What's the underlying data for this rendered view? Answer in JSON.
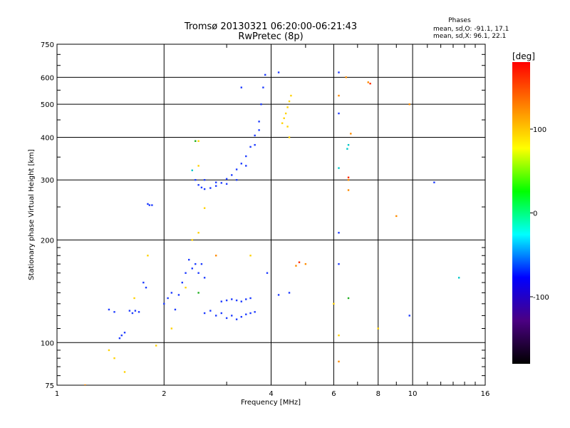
{
  "chart_data": {
    "type": "scatter",
    "title": "Tromsø 20130321 06:20:00-06:21:43",
    "subtitle": "RwPretec (8p)",
    "xlabel": "Frequency [MHz]",
    "ylabel": "Stationary phase Virtual Height [km]",
    "x_scale": "log2",
    "y_scale": "log",
    "xlim": [
      1,
      16
    ],
    "ylim": [
      75,
      750
    ],
    "x_ticks": [
      "1",
      "2",
      "4",
      "6",
      "8",
      "10",
      "16"
    ],
    "y_ticks": [
      "75",
      "100",
      "200",
      "300",
      "400",
      "500",
      "600",
      "750"
    ],
    "grid": true,
    "stats_title": "Phases",
    "stats": [
      "mean, sd,O: -91.1, 17.1",
      "mean, sd,X:  96.1, 22.1"
    ],
    "colorbar": {
      "title": "[deg]",
      "range": [
        -180,
        180
      ],
      "tick_labels": [
        "100",
        "0",
        "-100"
      ],
      "colors": [
        "#000000",
        "#4b0082",
        "#0000ff",
        "#00ffff",
        "#00ff00",
        "#ffff00",
        "#ff8000",
        "#ff0000"
      ]
    },
    "series": [
      {
        "color": "#1e3cff",
        "points": [
          [
            1.4,
            125
          ],
          [
            1.45,
            123
          ],
          [
            1.5,
            103
          ],
          [
            1.52,
            105
          ],
          [
            1.55,
            107
          ],
          [
            1.6,
            124
          ],
          [
            1.63,
            122
          ],
          [
            1.66,
            124
          ],
          [
            1.7,
            123
          ],
          [
            1.75,
            150
          ],
          [
            1.78,
            145
          ],
          [
            1.8,
            255
          ],
          [
            1.82,
            253
          ],
          [
            1.85,
            253
          ],
          [
            2.0,
            130
          ],
          [
            2.05,
            135
          ],
          [
            2.1,
            140
          ],
          [
            2.15,
            125
          ],
          [
            2.2,
            138
          ],
          [
            2.25,
            150
          ],
          [
            2.3,
            160
          ],
          [
            2.35,
            175
          ],
          [
            2.4,
            165
          ],
          [
            2.45,
            170
          ],
          [
            2.5,
            160
          ],
          [
            2.55,
            170
          ],
          [
            2.6,
            155
          ],
          [
            2.6,
            122
          ],
          [
            2.7,
            124
          ],
          [
            2.8,
            120
          ],
          [
            2.9,
            122
          ],
          [
            3.0,
            118
          ],
          [
            3.1,
            120
          ],
          [
            3.2,
            117
          ],
          [
            3.3,
            119
          ],
          [
            3.4,
            121
          ],
          [
            3.5,
            122
          ],
          [
            3.6,
            123
          ],
          [
            2.9,
            132
          ],
          [
            3.0,
            133
          ],
          [
            3.1,
            134
          ],
          [
            3.2,
            133
          ],
          [
            3.3,
            132
          ],
          [
            3.4,
            134
          ],
          [
            3.5,
            135
          ],
          [
            2.45,
            300
          ],
          [
            2.5,
            290
          ],
          [
            2.55,
            285
          ],
          [
            2.6,
            282
          ],
          [
            2.7,
            284
          ],
          [
            2.8,
            288
          ],
          [
            2.9,
            294
          ],
          [
            3.0,
            302
          ],
          [
            3.1,
            310
          ],
          [
            3.2,
            322
          ],
          [
            3.3,
            335
          ],
          [
            3.4,
            352
          ],
          [
            3.5,
            375
          ],
          [
            3.6,
            405
          ],
          [
            3.7,
            445
          ],
          [
            3.75,
            500
          ],
          [
            3.8,
            560
          ],
          [
            3.85,
            610
          ],
          [
            2.6,
            300
          ],
          [
            2.8,
            295
          ],
          [
            3.0,
            292
          ],
          [
            3.2,
            300
          ],
          [
            3.4,
            330
          ],
          [
            3.6,
            380
          ],
          [
            3.7,
            420
          ],
          [
            4.2,
            620
          ],
          [
            3.3,
            560
          ],
          [
            6.2,
            620
          ],
          [
            6.2,
            470
          ],
          [
            6.2,
            210
          ],
          [
            6.2,
            170
          ],
          [
            11.5,
            295
          ],
          [
            9.8,
            120
          ],
          [
            4.5,
            140
          ],
          [
            4.2,
            138
          ],
          [
            3.9,
            160
          ]
        ]
      },
      {
        "color": "#ffd200",
        "points": [
          [
            1.4,
            95
          ],
          [
            1.45,
            90
          ],
          [
            1.55,
            82
          ],
          [
            1.65,
            135
          ],
          [
            1.8,
            180
          ],
          [
            1.9,
            98
          ],
          [
            2.1,
            110
          ],
          [
            2.3,
            145
          ],
          [
            2.4,
            200
          ],
          [
            2.5,
            210
          ],
          [
            2.6,
            248
          ],
          [
            2.5,
            330
          ],
          [
            2.5,
            390
          ],
          [
            4.3,
            440
          ],
          [
            4.35,
            455
          ],
          [
            4.4,
            470
          ],
          [
            4.45,
            490
          ],
          [
            4.5,
            510
          ],
          [
            4.55,
            530
          ],
          [
            4.45,
            430
          ],
          [
            4.5,
            400
          ],
          [
            3.5,
            180
          ],
          [
            6.0,
            130
          ],
          [
            8.0,
            110
          ],
          [
            6.2,
            105
          ]
        ]
      },
      {
        "color": "#ff8c00",
        "points": [
          [
            6.2,
            530
          ],
          [
            6.5,
            600
          ],
          [
            6.6,
            300
          ],
          [
            6.6,
            280
          ],
          [
            7.5,
            580
          ],
          [
            9.0,
            235
          ],
          [
            4.7,
            168
          ],
          [
            6.7,
            410
          ],
          [
            9.8,
            500
          ],
          [
            2.8,
            180
          ],
          [
            1.2,
            75
          ],
          [
            6.2,
            88
          ],
          [
            5.0,
            170
          ]
        ]
      },
      {
        "color": "#ff2a00",
        "points": [
          [
            6.6,
            305
          ],
          [
            7.6,
            575
          ],
          [
            4.8,
            172
          ]
        ]
      },
      {
        "color": "#00c8c8",
        "points": [
          [
            6.2,
            325
          ],
          [
            6.55,
            370
          ],
          [
            6.6,
            380
          ],
          [
            2.4,
            320
          ],
          [
            13.5,
            155
          ]
        ]
      },
      {
        "color": "#20b020",
        "points": [
          [
            2.45,
            390
          ],
          [
            2.5,
            140
          ],
          [
            6.6,
            135
          ]
        ]
      }
    ]
  }
}
